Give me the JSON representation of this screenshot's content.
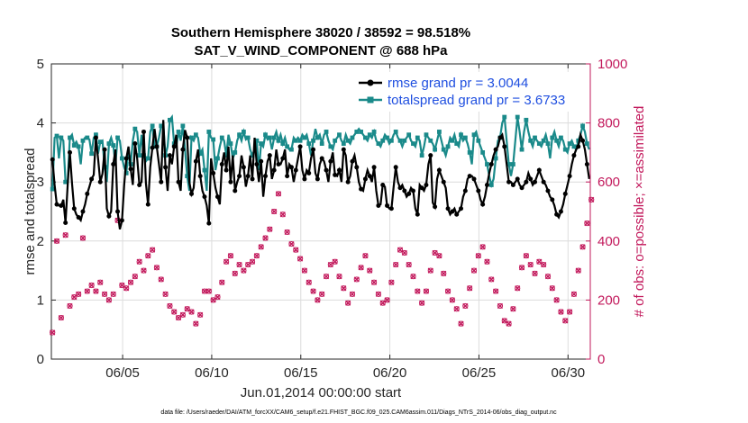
{
  "chart_data": {
    "type": "line",
    "title_line1": "Southern Hemisphere 38020 / 38592 = 98.518%",
    "title_line2": "SAT_V_WIND_COMPONENT @ 688 hPa",
    "xlabel": "Jun.01,2014 00:00:00 start",
    "ylabel": "rmse and totalspread",
    "y2label": "# of obs: o=possible; ×=assimilated",
    "footer": "data file: /Users/raeder/DAI/ATM_forcXX/CAM6_setup/f.e21.FHIST_BGC.f09_025.CAM6assim.011/Diags_NTrS_2014-06/obs_diag_output.nc",
    "xlim": [
      1,
      31.25
    ],
    "ylim": [
      0,
      5
    ],
    "y2lim": [
      0,
      1000
    ],
    "xticks": [
      5,
      10,
      15,
      20,
      25,
      30
    ],
    "xtick_labels": [
      "06/05",
      "06/10",
      "06/15",
      "06/20",
      "06/25",
      "06/30"
    ],
    "yticks": [
      0,
      1,
      2,
      3,
      4,
      5
    ],
    "ytick_labels": [
      "0",
      "1",
      "2",
      "3",
      "4",
      "5"
    ],
    "y2ticks": [
      0,
      200,
      400,
      600,
      800,
      1000
    ],
    "y2tick_labels": [
      "0",
      "200",
      "400",
      "600",
      "800",
      "1000"
    ],
    "legend_position": "top-right",
    "series": [
      {
        "name": "rmse grand pr = 3.0044",
        "color": "#000000",
        "values": [
          3.38,
          2.95,
          2.62,
          2.6,
          2.6,
          2.7,
          2.31,
          2.95,
          3.5,
          2.98,
          2.55,
          2.45,
          2.4,
          2.35,
          2.5,
          2.62,
          2.8,
          2.92,
          3.05,
          3.12,
          3.75,
          3.4,
          3.0,
          3.14,
          3.55,
          2.55,
          2.42,
          2.5,
          3.3,
          3.55,
          2.5,
          2.2,
          2.35,
          2.95,
          3.4,
          3.6,
          3.22,
          2.95,
          3.65,
          3.4,
          2.95,
          3.0,
          3.85,
          2.98,
          2.62,
          3.25,
          3.58,
          3.9,
          3.6,
          3.3,
          3.0,
          4.05,
          3.25,
          2.85,
          3.45,
          3.3,
          3.6,
          3.8,
          3.0,
          2.85,
          3.55,
          3.88,
          3.75,
          3.0,
          2.8,
          2.9,
          3.35,
          3.55,
          3.1,
          2.85,
          2.75,
          2.6,
          2.3,
          3.4,
          3.15,
          2.9,
          2.75,
          2.62,
          3.3,
          3.5,
          3.2,
          3.6,
          3.0,
          3.45,
          2.85,
          3.0,
          3.1,
          3.45,
          3.25,
          2.92,
          3.1,
          3.45,
          3.05,
          3.75,
          3.3,
          3.0,
          3.35,
          2.75,
          3.1,
          3.35,
          3.45,
          3.05,
          3.2,
          3.55,
          3.3,
          3.3,
          3.4,
          3.55,
          3.1,
          3.3,
          3.25,
          3.0,
          3.2,
          3.4,
          3.6,
          3.2,
          3.05,
          3.2,
          3.15,
          3.4,
          3.55,
          3.15,
          3.05,
          3.3,
          3.4,
          3.35,
          3.2,
          3.0,
          3.35,
          3.5,
          3.12,
          3.1,
          3.2,
          3.0,
          3.55,
          3.45,
          3.0,
          3.1,
          3.35,
          3.45,
          3.25,
          3.0,
          2.88,
          2.85,
          3.05,
          3.2,
          3.1,
          3.0,
          3.25,
          2.85,
          2.6,
          2.62,
          2.95,
          2.92,
          2.6,
          2.55,
          2.55,
          2.92,
          3.25,
          3.0,
          2.9,
          2.95,
          2.85,
          2.75,
          2.8,
          2.9,
          2.85,
          2.55,
          2.45,
          2.95,
          2.9,
          2.85,
          2.95,
          3.3,
          3.45,
          2.65,
          2.58,
          3.05,
          3.2,
          3.1,
          3.0,
          2.9,
          2.55,
          2.45,
          2.5,
          2.55,
          2.45,
          2.5,
          2.55,
          2.75,
          2.85,
          3.05,
          3.1,
          3.1,
          3.05,
          2.95,
          2.85,
          2.7,
          2.62,
          2.75,
          2.95,
          3.15,
          3.3,
          3.45,
          3.55,
          3.6,
          3.75,
          3.8,
          3.6,
          3.3,
          3.0,
          3.0,
          2.95,
          3.0,
          3.05,
          2.95,
          2.9,
          2.95,
          3.0,
          3.15,
          3.05,
          2.95,
          3.0,
          3.1,
          3.2,
          3.1,
          3.0,
          2.95,
          2.85,
          2.75,
          2.7,
          2.6,
          2.45,
          2.4,
          2.5,
          2.62,
          2.8,
          2.95,
          3.1,
          3.3,
          3.45,
          3.55,
          3.6,
          3.8,
          3.7,
          3.55,
          3.3,
          3.05
        ]
      },
      {
        "name": "totalspread grand pr = 3.6733",
        "color": "#1a8a8a",
        "values": [
          2.88,
          3.75,
          3.78,
          3.4,
          3.75,
          3.7,
          3.0,
          3.0,
          3.75,
          3.8,
          3.62,
          3.68,
          3.6,
          3.3,
          3.7,
          3.75,
          3.75,
          3.72,
          3.48,
          3.75,
          3.8,
          3.48,
          3.68,
          3.7,
          3.25,
          3.0,
          3.65,
          3.75,
          3.62,
          3.3,
          3.75,
          3.7,
          3.4,
          3.25,
          3.15,
          3.55,
          3.3,
          3.7,
          3.9,
          3.85,
          3.45,
          3.8,
          3.45,
          3.35,
          3.4,
          3.85,
          3.95,
          3.6,
          3.6,
          3.75,
          3.95,
          3.95,
          3.45,
          3.6,
          4.05,
          4.1,
          3.65,
          3.6,
          3.85,
          3.7,
          3.95,
          3.55,
          3.1,
          2.85,
          3.75,
          3.7,
          3.8,
          3.75,
          3.48,
          3.55,
          3.2,
          2.85,
          3.85,
          3.75,
          3.72,
          3.2,
          3.4,
          3.6,
          3.75,
          3.7,
          3.45,
          3.8,
          3.65,
          3.4,
          3.5,
          3.7,
          3.8,
          3.7,
          3.85,
          3.72,
          3.75,
          3.55,
          3.45,
          3.55,
          3.7,
          3.2,
          3.65,
          3.6,
          3.8,
          3.72,
          3.75,
          3.55,
          3.75,
          3.85,
          3.7,
          3.8,
          3.65,
          3.75,
          3.6,
          3.55,
          3.55,
          3.75,
          3.7,
          3.75,
          3.7,
          3.8,
          3.75,
          3.8,
          3.65,
          3.45,
          3.7,
          3.9,
          3.75,
          3.8,
          3.65,
          3.8,
          3.85,
          3.7,
          3.6,
          3.55,
          3.7,
          3.75,
          3.8,
          3.7,
          3.65,
          3.8,
          3.7,
          3.65,
          3.75,
          3.8,
          3.85,
          3.9,
          3.85,
          3.8,
          3.75,
          3.7,
          3.8,
          3.75,
          3.85,
          3.7,
          3.65,
          3.6,
          3.7,
          3.8,
          3.75,
          3.65,
          3.7,
          3.8,
          3.85,
          3.75,
          3.7,
          3.6,
          3.7,
          3.75,
          3.8,
          3.7,
          3.65,
          3.6,
          3.75,
          3.7,
          3.45,
          3.6,
          3.8,
          3.75,
          3.7,
          3.65,
          3.55,
          3.7,
          3.85,
          3.7,
          3.55,
          3.45,
          3.6,
          3.75,
          3.7,
          3.8,
          3.65,
          3.6,
          3.8,
          3.7,
          3.75,
          3.65,
          3.5,
          3.3,
          3.8,
          3.85,
          3.7,
          3.6,
          3.5,
          3.4,
          3.3,
          3.1,
          2.95,
          3.05,
          3.4,
          3.7,
          3.75,
          4.0,
          4.1,
          3.7,
          3.3,
          3.1,
          3.3,
          3.7,
          4.1,
          3.85,
          3.55,
          3.85,
          4.05,
          3.85,
          3.7,
          3.6,
          3.75,
          3.7,
          3.65,
          3.6,
          3.7,
          3.8,
          3.65,
          3.4,
          3.75,
          3.85,
          3.7,
          3.6,
          3.75,
          3.7,
          3.55,
          3.5,
          3.65,
          3.7,
          3.6,
          3.55,
          3.7,
          3.8,
          3.95,
          3.85,
          3.65,
          3.55
        ]
      },
      {
        "name": "obs possible",
        "color": "#c2185b",
        "marker": "o",
        "values": [
          90,
          420,
          400,
          180,
          140,
          170,
          420,
          410,
          180,
          180,
          210,
          200,
          220,
          400,
          410,
          220,
          230,
          240,
          250,
          240,
          230,
          250,
          260,
          240,
          220,
          210,
          200,
          230,
          220,
          270,
          470,
          460,
          250,
          230,
          240,
          250,
          260,
          270,
          280,
          300,
          330,
          340,
          300,
          320,
          350,
          360,
          370,
          330,
          310,
          290,
          270,
          250,
          220,
          200,
          180,
          170,
          160,
          150,
          140,
          140,
          150,
          160,
          170,
          180,
          160,
          140,
          120,
          130,
          150,
          200,
          230,
          250,
          230,
          220,
          200,
          160,
          210,
          240,
          260,
          280,
          330,
          340,
          350,
          340,
          290,
          300,
          320,
          310,
          300,
          290,
          320,
          340,
          330,
          320,
          350,
          370,
          380,
          390,
          410,
          430,
          440,
          460,
          500,
          540,
          560,
          520,
          490,
          460,
          430,
          410,
          390,
          380,
          370,
          360,
          340,
          320,
          300,
          280,
          260,
          240,
          230,
          220,
          200,
          200,
          220,
          250,
          280,
          300,
          320,
          340,
          330,
          300,
          280,
          260,
          240,
          210,
          190,
          200,
          220,
          250,
          270,
          290,
          310,
          330,
          350,
          330,
          300,
          280,
          260,
          240,
          220,
          200,
          190,
          180,
          200,
          230,
          260,
          290,
          320,
          350,
          370,
          380,
          360,
          340,
          320,
          300,
          280,
          260,
          230,
          200,
          190,
          200,
          230,
          260,
          300,
          330,
          360,
          370,
          350,
          320,
          290,
          260,
          230,
          210,
          200,
          190,
          170,
          140,
          120,
          150,
          180,
          210,
          240,
          270,
          300,
          330,
          350,
          370,
          380,
          360,
          330,
          300,
          270,
          250,
          230,
          210,
          180,
          150,
          130,
          110,
          120,
          140,
          170,
          200,
          240,
          280,
          310,
          330,
          350,
          340,
          320,
          300,
          290,
          310,
          330,
          340,
          320,
          300,
          280,
          260,
          240,
          220,
          200,
          180,
          160,
          140,
          130,
          140,
          160,
          190,
          220,
          260,
          300,
          340,
          380,
          420,
          460,
          500,
          540
        ]
      }
    ]
  }
}
